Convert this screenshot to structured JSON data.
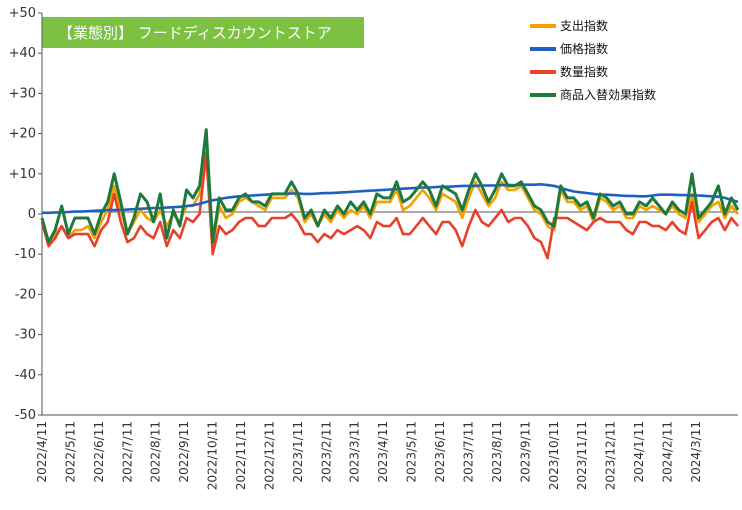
{
  "chart_data": {
    "type": "line",
    "title": "【業態別】 フードディスカウントストア",
    "xlabel": "",
    "ylabel": "",
    "ylim": [
      -50,
      50
    ],
    "yticks": [
      "+50",
      "+40",
      "+30",
      "+20",
      "+10",
      "0",
      "-10",
      "-20",
      "-30",
      "-40",
      "-50"
    ],
    "grid": "none",
    "legend_position": "top-right",
    "colors": {
      "title_bg": "#7cc142",
      "axis": "#555555",
      "zero_line": "#555555"
    },
    "x_labels": [
      "2022/4/11",
      "2022/5/11",
      "2022/6/11",
      "2022/7/11",
      "2022/8/11",
      "2022/9/11",
      "2022/10/11",
      "2022/11/11",
      "2022/12/11",
      "2023/1/11",
      "2023/2/11",
      "2023/3/11",
      "2023/4/11",
      "2023/5/11",
      "2023/6/11",
      "2023/7/11",
      "2023/8/11",
      "2023/9/11",
      "2023/10/11",
      "2023/11/11",
      "2023/12/11",
      "2024/1/11",
      "2024/2/11",
      "2024/3/11"
    ],
    "x_points_per_label": 4.33,
    "series": [
      {
        "name": "支出指数",
        "color": "#f5a000",
        "values": [
          -2,
          -7,
          -5,
          -3,
          -6,
          -4,
          -4,
          -3,
          -6,
          -2,
          1,
          7,
          1,
          -5,
          -2,
          1,
          -1,
          -2,
          1,
          -3,
          0,
          -2,
          2,
          2,
          5,
          18,
          -8,
          2,
          -1,
          0,
          3,
          4,
          3,
          2,
          1,
          4,
          4,
          4,
          6,
          4,
          -2,
          0,
          -3,
          0,
          -2,
          1,
          -1,
          1,
          0,
          2,
          -1,
          3,
          3,
          3,
          6,
          1,
          2,
          4,
          6,
          4,
          1,
          5,
          4,
          3,
          -1,
          4,
          8,
          5,
          2,
          4,
          8,
          6,
          6,
          7,
          4,
          1,
          0,
          -3,
          -4,
          6,
          3,
          3,
          1,
          2,
          -2,
          4,
          3,
          1,
          2,
          -1,
          -1,
          2,
          1,
          2,
          1,
          0,
          2,
          0,
          -1,
          5,
          -2,
          0,
          2,
          3,
          -1,
          2,
          0
        ]
      },
      {
        "name": "価格指数",
        "color": "#1f5fbf",
        "values": [
          0.3,
          0.3,
          0.4,
          0.4,
          0.5,
          0.6,
          0.6,
          0.7,
          0.8,
          0.9,
          1.0,
          1.0,
          1.0,
          1.1,
          1.2,
          1.3,
          1.4,
          1.5,
          1.5,
          1.6,
          1.7,
          1.8,
          2.0,
          2.2,
          2.5,
          3.0,
          3.4,
          3.7,
          4.0,
          4.2,
          4.4,
          4.5,
          4.6,
          4.7,
          4.8,
          4.9,
          5.0,
          5.0,
          5.1,
          5.1,
          5.0,
          5.0,
          5.1,
          5.2,
          5.2,
          5.3,
          5.4,
          5.5,
          5.6,
          5.7,
          5.8,
          5.9,
          6.0,
          6.1,
          6.2,
          6.3,
          6.4,
          6.5,
          6.6,
          6.6,
          6.7,
          6.8,
          6.8,
          6.9,
          7.0,
          7.0,
          7.0,
          7.1,
          7.1,
          7.1,
          7.2,
          7.2,
          7.2,
          7.3,
          7.3,
          7.3,
          7.4,
          7.2,
          7.0,
          6.5,
          6.0,
          5.6,
          5.4,
          5.2,
          5.0,
          4.8,
          4.8,
          4.7,
          4.6,
          4.5,
          4.5,
          4.4,
          4.4,
          4.6,
          4.8,
          4.8,
          4.8,
          4.7,
          4.7,
          4.6,
          4.6,
          4.5,
          4.4,
          4.3,
          4.0,
          3.5,
          3.0
        ]
      },
      {
        "name": "数量指数",
        "color": "#e8402a",
        "values": [
          -2,
          -8,
          -6,
          -3,
          -6,
          -5,
          -5,
          -5,
          -8,
          -4,
          -2,
          5,
          -2,
          -7,
          -6,
          -3,
          -5,
          -6,
          -2,
          -8,
          -4,
          -6,
          -1,
          -2,
          0,
          15,
          -10,
          -3,
          -5,
          -4,
          -2,
          -1,
          -1,
          -3,
          -3,
          -1,
          -1,
          -1,
          0,
          -2,
          -5,
          -5,
          -7,
          -5,
          -6,
          -4,
          -5,
          -4,
          -3,
          -4,
          -6,
          -2,
          -3,
          -3,
          -1,
          -5,
          -5,
          -3,
          -1,
          -3,
          -5,
          -2,
          -2,
          -4,
          -8,
          -3,
          1,
          -2,
          -3,
          -1,
          1,
          -2,
          -1,
          -1,
          -3,
          -6,
          -7,
          -11,
          -1,
          -1,
          -1,
          -2,
          -3,
          -4,
          -2,
          -1,
          -2,
          -2,
          -2,
          -4,
          -5,
          -2,
          -2,
          -3,
          -3,
          -4,
          -2,
          -4,
          -5,
          3,
          -6,
          -4,
          -2,
          -1,
          -4,
          -1,
          -3
        ]
      },
      {
        "name": "商品入替効果指数",
        "color": "#1e7a3c",
        "values": [
          -1,
          -7,
          -4,
          2,
          -5,
          -1,
          -1,
          -1,
          -5,
          0,
          3,
          10,
          3,
          -5,
          -1,
          5,
          3,
          -2,
          5,
          -6,
          1,
          -3,
          6,
          4,
          7,
          21,
          -7,
          4,
          1,
          1,
          4,
          5,
          3,
          3,
          2,
          5,
          5,
          5,
          8,
          5,
          -1,
          1,
          -3,
          1,
          -1,
          2,
          0,
          3,
          1,
          3,
          0,
          5,
          4,
          4,
          8,
          3,
          4,
          6,
          8,
          6,
          2,
          7,
          6,
          5,
          1,
          6,
          10,
          7,
          3,
          6,
          10,
          7,
          7,
          8,
          5,
          2,
          1,
          -2,
          -3,
          7,
          4,
          4,
          2,
          3,
          -1,
          5,
          4,
          2,
          3,
          0,
          0,
          3,
          2,
          4,
          2,
          0,
          3,
          1,
          0,
          10,
          -1,
          1,
          3,
          7,
          0,
          4,
          1
        ]
      }
    ]
  }
}
